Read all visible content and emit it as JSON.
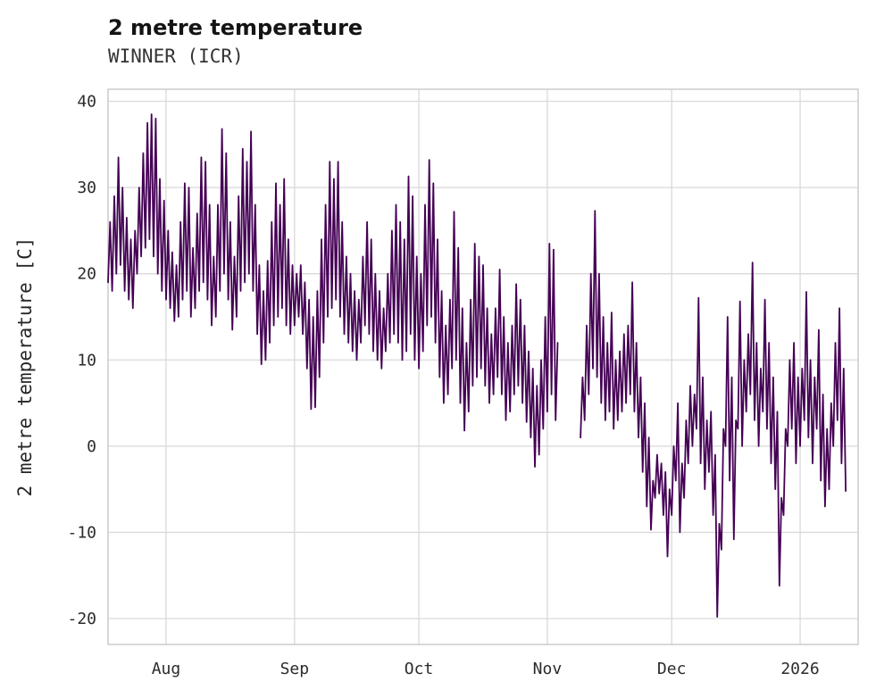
{
  "header": {
    "title": "2 metre temperature",
    "subtitle": "WINNER (ICR)"
  },
  "chart_data": {
    "type": "line",
    "title": "2 metre temperature",
    "subtitle": "WINNER (ICR)",
    "xlabel": "",
    "ylabel": "2 metre temperature [C]",
    "legend": "none",
    "grid": true,
    "grid_color": "#d9d9d9",
    "border_color": "#cccccc",
    "line_color": "#440154",
    "background_color": "#ffffff",
    "x_axis": {
      "description": "time in days from start of series (day 0 = approx 18 July); series runs to early January 2026",
      "min": 0,
      "max": 181,
      "ticks": [
        {
          "label": "Aug",
          "day": 14
        },
        {
          "label": "Sep",
          "day": 45
        },
        {
          "label": "Oct",
          "day": 75
        },
        {
          "label": "Nov",
          "day": 106
        },
        {
          "label": "Dec",
          "day": 136
        },
        {
          "label": "2026",
          "day": 167
        }
      ]
    },
    "y_axis": {
      "min": -23,
      "max": 41.4,
      "ticks": [
        -20,
        -10,
        0,
        10,
        20,
        30,
        40
      ]
    },
    "series": [
      {
        "name": "2 metre temperature",
        "start_day": 0,
        "step_days": 0.5,
        "note": "alternating nightly-min / daily-max samples estimated from plot; nulls = data gap in early November",
        "values": [
          19,
          26,
          18,
          29,
          20,
          33.5,
          21,
          30,
          18,
          26.5,
          17,
          24,
          16,
          25,
          20,
          30,
          22,
          34,
          23,
          37.5,
          24,
          38.5,
          22,
          38,
          20,
          31,
          18,
          28.5,
          17,
          25,
          16,
          22.5,
          14.5,
          21,
          15,
          26,
          17,
          30.5,
          18,
          30,
          15,
          23,
          16,
          27,
          18,
          33.5,
          19,
          33,
          17,
          28,
          14,
          22,
          15,
          28,
          18,
          36.8,
          20,
          34,
          17,
          26,
          13.5,
          22,
          15,
          29,
          18,
          34.5,
          19,
          33,
          20,
          36.5,
          18,
          28,
          13,
          21,
          9.5,
          18,
          10,
          21.5,
          12,
          26,
          14,
          30.5,
          15,
          28,
          16,
          31,
          14,
          24,
          13,
          21,
          14,
          20,
          15,
          21,
          13,
          19,
          9,
          17,
          4.3,
          15,
          4.5,
          18,
          8,
          24,
          12,
          28,
          15,
          33,
          16,
          31,
          17,
          33,
          15,
          26,
          13,
          22,
          12,
          20,
          11,
          18,
          10,
          17,
          12,
          22,
          14,
          26,
          13,
          24,
          11,
          20,
          10,
          18,
          9,
          16,
          11,
          20,
          12,
          25,
          13,
          28,
          12,
          26,
          10,
          24,
          11,
          31.3,
          13,
          29,
          10,
          22,
          9,
          20,
          11,
          28,
          14,
          33.2,
          15,
          30.5,
          12,
          24,
          8,
          18,
          5,
          14,
          6,
          17,
          9,
          27.2,
          10,
          23,
          5,
          16,
          1.8,
          12,
          4,
          17,
          7,
          23.5,
          8,
          22,
          9,
          21,
          7,
          16,
          5,
          13,
          6,
          16,
          8,
          20.5,
          6,
          15,
          3,
          12,
          4,
          14,
          6,
          18.8,
          7,
          17,
          5,
          14,
          2.8,
          11,
          1,
          9,
          -2.4,
          7,
          -1,
          10,
          2,
          15,
          4,
          23.5,
          6,
          22.8,
          3,
          12,
          null,
          null,
          null,
          null,
          null,
          null,
          null,
          null,
          null,
          null,
          1,
          8,
          3,
          14,
          6,
          20,
          9,
          27.3,
          8,
          20,
          5,
          15,
          3,
          12,
          4,
          15.5,
          2,
          10,
          3,
          11,
          4,
          13,
          5,
          14,
          6,
          19,
          4,
          12,
          1,
          8,
          -3,
          5,
          -7,
          1,
          -9.7,
          -4,
          -6,
          -1,
          -5.5,
          -2,
          -8,
          -3,
          -12.8,
          -5,
          -8,
          0,
          -4,
          5,
          -10,
          -2,
          -6,
          3,
          -2,
          7,
          0,
          6,
          2,
          17.2,
          -2,
          8,
          -5,
          3,
          -3,
          4,
          -8,
          -1,
          -19.8,
          -9,
          -12,
          2,
          0,
          15,
          -4,
          8,
          -10.8,
          3,
          2,
          16.8,
          0,
          10,
          4,
          13,
          6,
          21.3,
          3,
          12,
          0,
          9,
          4,
          17,
          2,
          12,
          -2,
          8,
          -5,
          4,
          -16.2,
          -6,
          -8,
          2,
          0,
          10,
          2,
          12,
          -2,
          8,
          0,
          9,
          3,
          17.9,
          1,
          10,
          -2,
          8,
          2,
          13.5,
          -4,
          6,
          -7,
          2,
          -5,
          5,
          0,
          12,
          3,
          16,
          -2,
          9,
          -5.2
        ]
      }
    ]
  }
}
